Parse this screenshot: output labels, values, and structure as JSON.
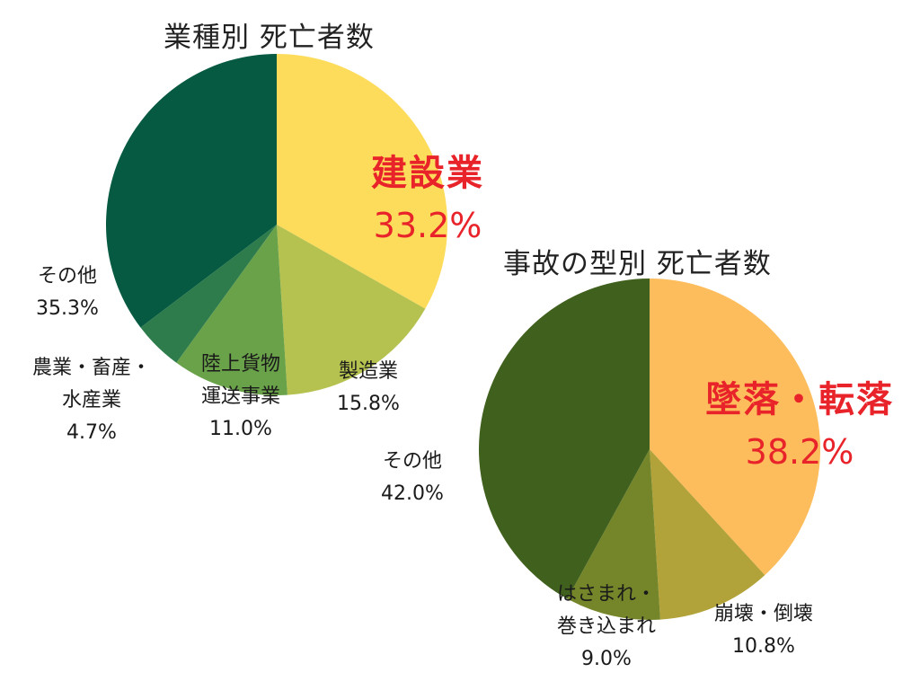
{
  "chart_data": [
    {
      "type": "pie",
      "title": "業種別 死亡者数",
      "start": "12 o'clock",
      "direction": "clockwise",
      "slices": [
        {
          "label_lines": [
            "建設業"
          ],
          "value_label": "33.2%",
          "value": 33.2,
          "color": "#fddc5c",
          "highlight": true
        },
        {
          "label_lines": [
            "製造業"
          ],
          "value_label": "15.8%",
          "value": 15.8,
          "color": "#b5c24f"
        },
        {
          "label_lines": [
            "陸上貨物",
            "運送事業"
          ],
          "value_label": "11.0%",
          "value": 11.0,
          "color": "#6aa24a"
        },
        {
          "label_lines": [
            "農業・畜産・",
            "水産業"
          ],
          "value_label": "4.7%",
          "value": 4.7,
          "color": "#2e7c4c"
        },
        {
          "label_lines": [
            "その他"
          ],
          "value_label": "35.3%",
          "value": 35.3,
          "color": "#055a41"
        }
      ]
    },
    {
      "type": "pie",
      "title": "事故の型別 死亡者数",
      "start": "12 o'clock",
      "direction": "clockwise",
      "slices": [
        {
          "label_lines": [
            "墜落・転落"
          ],
          "value_label": "38.2%",
          "value": 38.2,
          "color": "#fdbd5c",
          "highlight": true
        },
        {
          "label_lines": [
            "崩壊・倒壊"
          ],
          "value_label": "10.8%",
          "value": 10.8,
          "color": "#b2a23a"
        },
        {
          "label_lines": [
            "はさまれ・",
            "巻き込まれ"
          ],
          "value_label": "9.0%",
          "value": 9.0,
          "color": "#748629"
        },
        {
          "label_lines": [
            "その他"
          ],
          "value_label": "42.0%",
          "value": 42.0,
          "color": "#40601d"
        }
      ]
    }
  ]
}
